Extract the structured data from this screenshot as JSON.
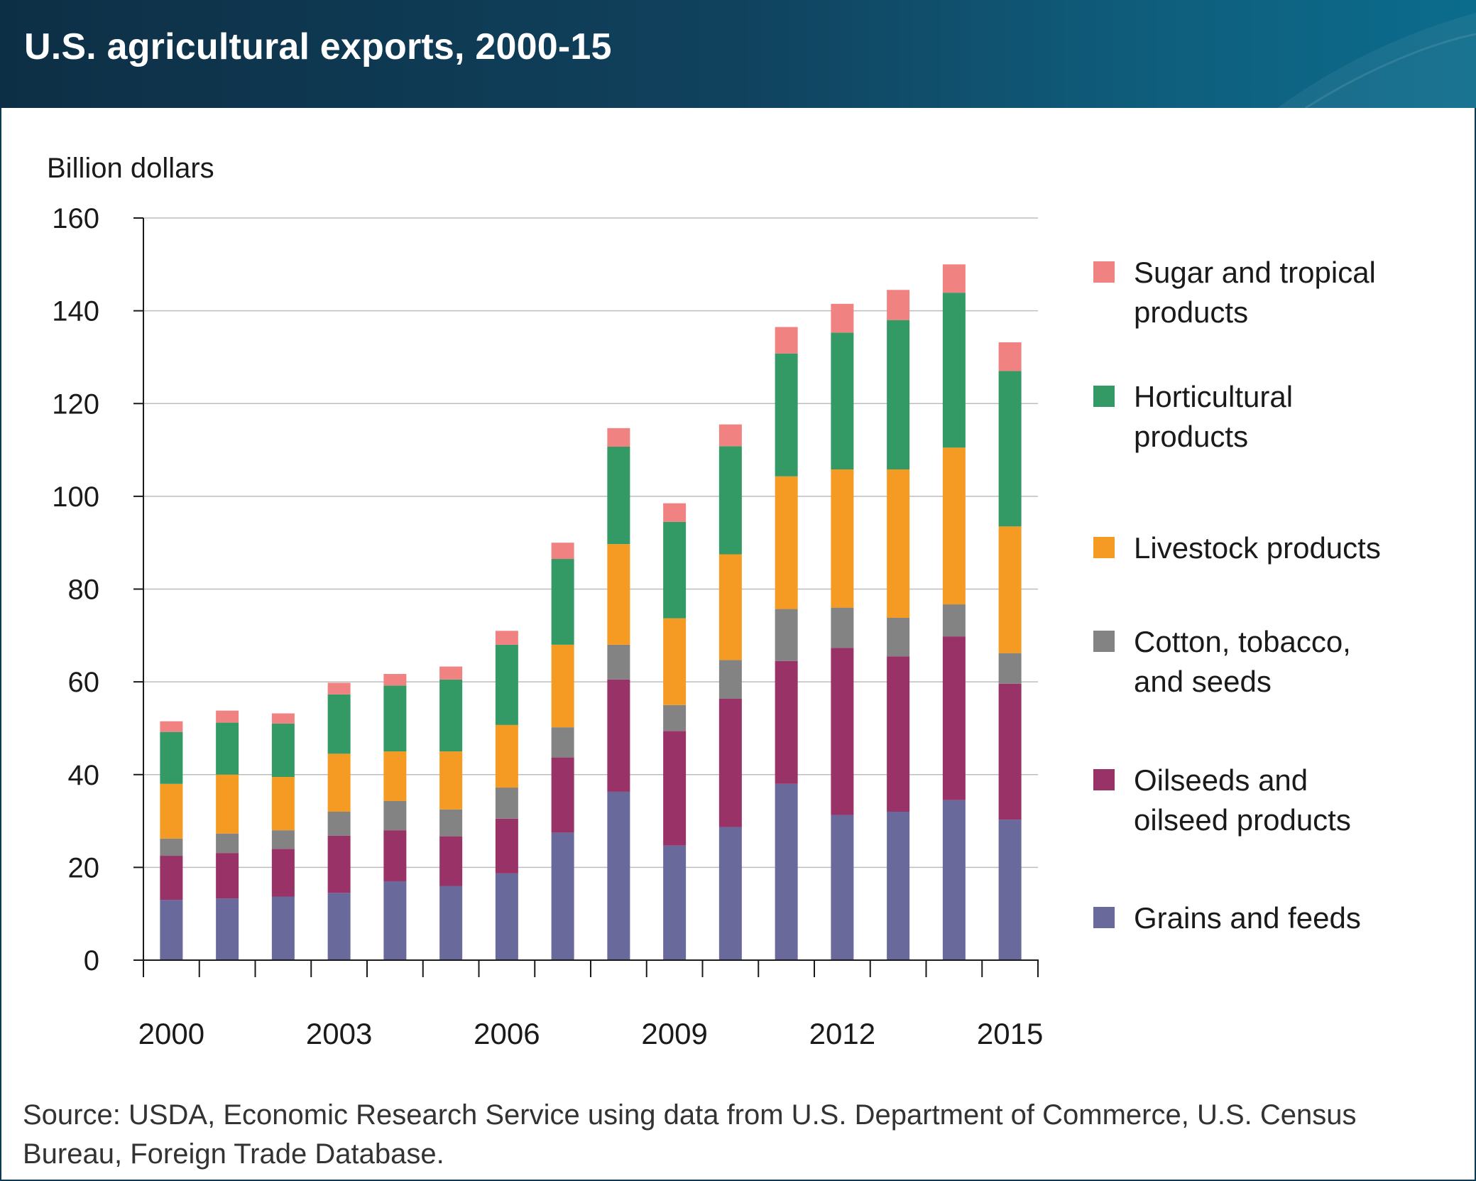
{
  "title": "U.S. agricultural exports, 2000-15",
  "source": "Source: USDA, Economic Research Service using data from U.S. Department of Commerce, U.S. Census Bureau, Foreign Trade Database.",
  "chart_data": {
    "type": "bar",
    "stacked": true,
    "ylabel": "Billion dollars",
    "ylim": [
      0,
      160
    ],
    "yticks": [
      0,
      20,
      40,
      60,
      80,
      100,
      120,
      140,
      160
    ],
    "grid": true,
    "legend_position": "right",
    "categories": [
      "2000",
      "2001",
      "2002",
      "2003",
      "2004",
      "2005",
      "2006",
      "2007",
      "2008",
      "2009",
      "2010",
      "2011",
      "2012",
      "2013",
      "2014",
      "2015"
    ],
    "xtick_labels": [
      "2000",
      "2003",
      "2006",
      "2009",
      "2012",
      "2015"
    ],
    "series": [
      {
        "name": "Grains and feeds",
        "color": "#69699c",
        "values": [
          13.0,
          13.3,
          13.7,
          14.5,
          17.0,
          16.0,
          18.7,
          27.5,
          36.3,
          24.7,
          28.7,
          38.0,
          31.3,
          32.0,
          34.5,
          30.3
        ]
      },
      {
        "name": "Oilseeds and oilseed products",
        "color": "#993266",
        "values": [
          9.5,
          9.8,
          10.3,
          12.3,
          11.0,
          10.7,
          11.8,
          16.2,
          24.2,
          24.7,
          27.7,
          26.5,
          36.0,
          33.5,
          35.3,
          29.3
        ]
      },
      {
        "name": "Cotton, tobacco, and seeds",
        "color": "#838383",
        "values": [
          3.7,
          4.2,
          4.0,
          5.2,
          6.3,
          5.8,
          6.7,
          6.5,
          7.5,
          5.6,
          8.3,
          11.2,
          8.7,
          8.3,
          6.9,
          6.6
        ]
      },
      {
        "name": "Livestock products",
        "color": "#f59b23",
        "values": [
          11.8,
          12.7,
          11.5,
          12.5,
          10.7,
          12.5,
          13.5,
          17.8,
          21.7,
          18.7,
          22.8,
          28.6,
          29.8,
          32.0,
          33.8,
          27.3
        ]
      },
      {
        "name": "Horticultural products",
        "color": "#339a66",
        "values": [
          11.2,
          11.2,
          11.5,
          12.8,
          14.2,
          15.5,
          17.3,
          18.5,
          21.0,
          20.8,
          23.3,
          26.5,
          29.5,
          32.2,
          33.4,
          33.5
        ]
      },
      {
        "name": "Sugar and tropical products",
        "color": "#f08282",
        "values": [
          2.3,
          2.6,
          2.2,
          2.5,
          2.5,
          2.8,
          3.0,
          3.5,
          4.0,
          4.0,
          4.7,
          5.7,
          6.2,
          6.5,
          6.1,
          6.2
        ]
      }
    ],
    "legend": [
      {
        "lines": [
          "Sugar and tropical",
          "products"
        ],
        "color": "#f08282"
      },
      {
        "lines": [
          "Horticultural",
          "products"
        ],
        "color": "#339a66"
      },
      {
        "lines": [
          "Livestock products"
        ],
        "color": "#f59b23"
      },
      {
        "lines": [
          "Cotton, tobacco,",
          "and seeds"
        ],
        "color": "#838383"
      },
      {
        "lines": [
          "Oilseeds and",
          "oilseed products"
        ],
        "color": "#993266"
      },
      {
        "lines": [
          "Grains and feeds"
        ],
        "color": "#69699c"
      }
    ]
  }
}
